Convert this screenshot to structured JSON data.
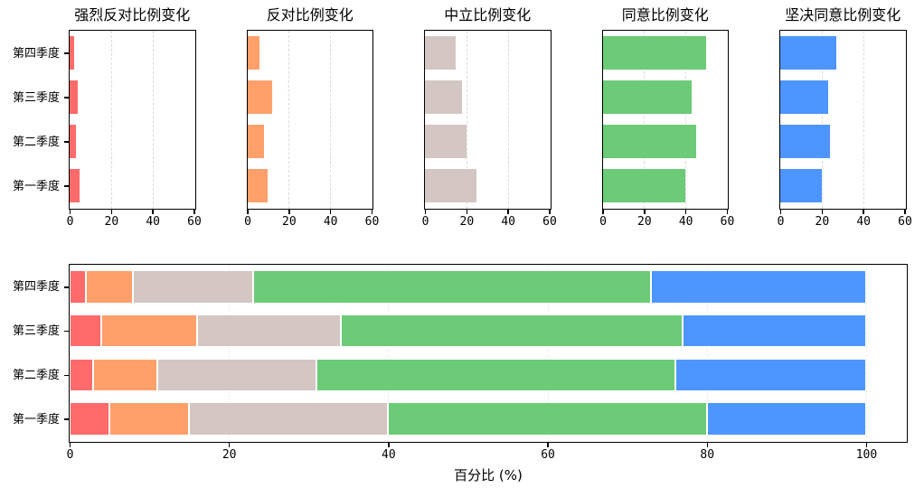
{
  "page": {
    "background": "#ffffff"
  },
  "categories_top_to_bottom": [
    "第四季度",
    "第三季度",
    "第二季度",
    "第一季度"
  ],
  "palette": {
    "strongly_disagree": "#FF6B6B",
    "disagree": "#FFA06B",
    "neutral": "#D3C6C3",
    "agree": "#6BCB77",
    "strongly_agree": "#4D96FF"
  },
  "chart_data": [
    {
      "type": "bar",
      "orientation": "horizontal",
      "title": "强烈反对比例变化",
      "series_name": "强烈反对",
      "color": "#FF6B6B",
      "categories": [
        "第四季度",
        "第三季度",
        "第二季度",
        "第一季度"
      ],
      "values": [
        2,
        4,
        3,
        5
      ],
      "xlim": [
        0,
        60
      ],
      "xticks": [
        0,
        20,
        40,
        60
      ],
      "grid": "vertical-dashed",
      "show_y_labels": true,
      "legend": "none"
    },
    {
      "type": "bar",
      "orientation": "horizontal",
      "title": "反对比例变化",
      "series_name": "反对",
      "color": "#FFA06B",
      "categories": [
        "第四季度",
        "第三季度",
        "第二季度",
        "第一季度"
      ],
      "values": [
        6,
        12,
        8,
        10
      ],
      "xlim": [
        0,
        60
      ],
      "xticks": [
        0,
        20,
        40,
        60
      ],
      "grid": "vertical-dashed",
      "show_y_labels": false,
      "legend": "none"
    },
    {
      "type": "bar",
      "orientation": "horizontal",
      "title": "中立比例变化",
      "series_name": "中立",
      "color": "#D3C6C3",
      "categories": [
        "第四季度",
        "第三季度",
        "第二季度",
        "第一季度"
      ],
      "values": [
        15,
        18,
        20,
        25
      ],
      "xlim": [
        0,
        60
      ],
      "xticks": [
        0,
        20,
        40,
        60
      ],
      "grid": "vertical-dashed",
      "show_y_labels": false,
      "legend": "none"
    },
    {
      "type": "bar",
      "orientation": "horizontal",
      "title": "同意比例变化",
      "series_name": "同意",
      "color": "#6BCB77",
      "categories": [
        "第四季度",
        "第三季度",
        "第二季度",
        "第一季度"
      ],
      "values": [
        50,
        43,
        45,
        40
      ],
      "xlim": [
        0,
        60
      ],
      "xticks": [
        0,
        20,
        40,
        60
      ],
      "grid": "vertical-dashed",
      "show_y_labels": false,
      "legend": "none"
    },
    {
      "type": "bar",
      "orientation": "horizontal",
      "title": "坚决同意比例变化",
      "series_name": "坚决同意",
      "color": "#4D96FF",
      "categories": [
        "第四季度",
        "第三季度",
        "第二季度",
        "第一季度"
      ],
      "values": [
        27,
        23,
        24,
        20
      ],
      "xlim": [
        0,
        60
      ],
      "xticks": [
        0,
        20,
        40,
        60
      ],
      "grid": "vertical-dashed",
      "show_y_labels": false,
      "legend": "none"
    },
    {
      "type": "stacked-bar",
      "orientation": "horizontal",
      "title": "",
      "xlabel": "百分比 (%)",
      "categories": [
        "第四季度",
        "第三季度",
        "第二季度",
        "第一季度"
      ],
      "xlim": [
        0,
        105
      ],
      "xticks": [
        0,
        20,
        40,
        60,
        80,
        100
      ],
      "grid": "vertical-dashed-faint",
      "show_y_labels": true,
      "legend": "none",
      "series": [
        {
          "name": "强烈反对",
          "color": "#FF6B6B",
          "values": [
            2,
            4,
            3,
            5
          ]
        },
        {
          "name": "反对",
          "color": "#FFA06B",
          "values": [
            6,
            12,
            8,
            10
          ]
        },
        {
          "name": "中立",
          "color": "#D3C6C3",
          "values": [
            15,
            18,
            20,
            25
          ]
        },
        {
          "name": "同意",
          "color": "#6BCB77",
          "values": [
            50,
            43,
            45,
            40
          ]
        },
        {
          "name": "坚决同意",
          "color": "#4D96FF",
          "values": [
            27,
            23,
            24,
            20
          ]
        }
      ]
    }
  ]
}
